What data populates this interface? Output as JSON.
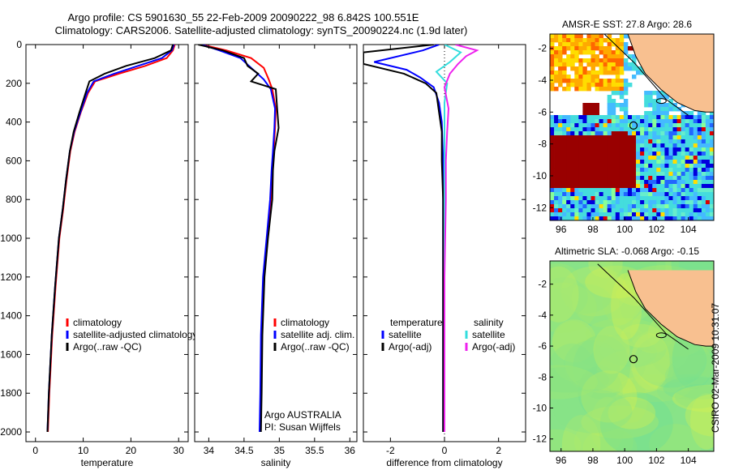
{
  "header": {
    "line1": "Argo profile: CS 5901630_55 22-Feb-2009 20090222_98 6.842S 100.551E",
    "line2": "Climatology: CARS2006. Satellite-adjusted climatology: synTS_20090224.nc (1.9d later)"
  },
  "credit": "CSIRO 02-Mar-2009 10:31:07",
  "colors": {
    "climatology": "#ff0000",
    "satellite": "#0000ff",
    "argo": "#000000",
    "sal_satellite": "#33dddd",
    "sal_argo": "#ee22ee",
    "land": "#f8c090",
    "float_marker": "#000000"
  },
  "chart_data": [
    {
      "type": "line",
      "id": "temperature",
      "xlabel": "temperature",
      "ylabel": "",
      "xlim": [
        -2,
        32
      ],
      "ylim": [
        2050,
        0
      ],
      "xticks": [
        0,
        10,
        20,
        30
      ],
      "yticks": [
        0,
        200,
        400,
        600,
        800,
        1000,
        1200,
        1400,
        1600,
        1800,
        2000
      ],
      "series": [
        {
          "name": "climatology",
          "color_key": "climatology",
          "x": [
            29.2,
            28.8,
            27.5,
            23.0,
            17.5,
            12.5,
            11.0,
            9.5,
            8.2,
            7.3,
            6.5,
            5.8,
            5.0,
            4.2,
            3.5,
            2.9,
            2.6
          ],
          "y": [
            0,
            30,
            70,
            110,
            150,
            190,
            250,
            350,
            450,
            550,
            700,
            850,
            1000,
            1250,
            1500,
            1800,
            2000
          ]
        },
        {
          "name": "satellite-adjusted climatology",
          "color_key": "satellite",
          "x": [
            29.0,
            28.6,
            26.5,
            21.5,
            16.5,
            12.2,
            10.8,
            9.4,
            8.1,
            7.2,
            6.4,
            5.7,
            4.9,
            4.1,
            3.4,
            2.8,
            2.5
          ],
          "y": [
            0,
            30,
            70,
            110,
            150,
            190,
            250,
            350,
            450,
            550,
            700,
            850,
            1000,
            1250,
            1500,
            1800,
            2000
          ]
        },
        {
          "name": "Argo(..raw -QC)",
          "color_key": "argo",
          "x": [
            28.8,
            28.4,
            25.0,
            19.0,
            14.5,
            11.3,
            10.5,
            9.2,
            8.0,
            7.2,
            6.4,
            5.7,
            4.9,
            4.1,
            3.4,
            2.8,
            2.5
          ],
          "y": [
            0,
            30,
            70,
            110,
            150,
            190,
            250,
            350,
            450,
            550,
            700,
            850,
            1000,
            1250,
            1500,
            1800,
            2000
          ]
        }
      ],
      "legend": [
        {
          "label": "climatology",
          "color_key": "climatology"
        },
        {
          "label": "satellite-adjusted climatology",
          "color_key": "satellite"
        },
        {
          "label": "Argo(..raw -QC)",
          "color_key": "argo"
        }
      ],
      "legend_position": "lower-right"
    },
    {
      "type": "line",
      "id": "salinity",
      "xlabel": "salinity",
      "ylabel": "",
      "xlim": [
        33.8,
        36.1
      ],
      "ylim": [
        2050,
        0
      ],
      "xticks": [
        34,
        34.5,
        35,
        35.5,
        36
      ],
      "yticks": [
        0,
        200,
        400,
        600,
        800,
        1000,
        1200,
        1400,
        1600,
        1800,
        2000
      ],
      "series": [
        {
          "name": "climatology",
          "color_key": "climatology",
          "x": [
            33.9,
            34.25,
            34.6,
            34.78,
            34.85,
            34.9,
            34.95,
            34.94,
            34.92,
            34.9,
            34.88,
            34.83,
            34.78,
            34.75,
            34.74,
            34.73
          ],
          "y": [
            0,
            30,
            70,
            120,
            180,
            230,
            330,
            430,
            550,
            650,
            800,
            1000,
            1200,
            1500,
            1800,
            2000
          ]
        },
        {
          "name": "satellite adj. clim.",
          "color_key": "satellite",
          "x": [
            33.9,
            34.15,
            34.45,
            34.6,
            34.78,
            34.88,
            34.94,
            34.93,
            34.91,
            34.89,
            34.87,
            34.82,
            34.77,
            34.74,
            34.73,
            34.72
          ],
          "y": [
            0,
            30,
            70,
            120,
            180,
            230,
            330,
            430,
            550,
            650,
            800,
            1000,
            1200,
            1500,
            1800,
            2000
          ]
        },
        {
          "name": "Argo(..raw -QC)",
          "color_key": "argo",
          "x": [
            33.85,
            34.2,
            34.5,
            34.55,
            34.7,
            34.6,
            34.95,
            34.97,
            34.99,
            34.93,
            34.91,
            34.9,
            34.84,
            34.79,
            34.76,
            34.75,
            34.74
          ],
          "y": [
            0,
            30,
            70,
            110,
            150,
            190,
            230,
            330,
            430,
            550,
            650,
            800,
            1000,
            1200,
            1500,
            1800,
            2000
          ]
        }
      ],
      "legend": [
        {
          "label": "climatology",
          "color_key": "climatology"
        },
        {
          "label": "satellite adj. clim.",
          "color_key": "satellite"
        },
        {
          "label": "Argo(..raw -QC)",
          "color_key": "argo"
        }
      ],
      "legend_position": "lower-right",
      "annotation": [
        "Argo AUSTRALIA",
        "PI: Susan Wijffels"
      ]
    },
    {
      "type": "line",
      "id": "difference",
      "xlabel": "difference from climatology",
      "ylabel": "",
      "xlim": [
        -3,
        3
      ],
      "ylim": [
        2050,
        0
      ],
      "xticks": [
        -2,
        0,
        2
      ],
      "yticks": [
        0,
        200,
        400,
        600,
        800,
        1000,
        1200,
        1400,
        1600,
        1800,
        2000
      ],
      "series": [
        {
          "name": "temperature satellite",
          "color_key": "satellite",
          "x": [
            -0.2,
            -0.8,
            -2.6,
            -1.4,
            -0.9,
            -0.4,
            -0.2,
            -0.1,
            -0.05,
            -0.05,
            -0.05,
            -0.05,
            -0.05,
            -0.05
          ],
          "y": [
            0,
            30,
            90,
            130,
            170,
            220,
            300,
            400,
            600,
            800,
            1000,
            1400,
            1800,
            2000
          ]
        },
        {
          "name": "temperature Argo(-adj)",
          "color_key": "argo",
          "x": [
            -0.4,
            -3.0,
            -3.0,
            -1.5,
            -0.7,
            -0.3,
            -0.2,
            -0.1,
            -0.1,
            -0.05,
            -0.05,
            -0.05,
            -0.05
          ],
          "y": [
            0,
            40,
            100,
            150,
            200,
            250,
            350,
            450,
            600,
            800,
            1000,
            1400,
            2000
          ]
        },
        {
          "name": "salinity satellite",
          "color_key": "sal_satellite",
          "x": [
            0.0,
            0.6,
            0.2,
            -0.3,
            0.1,
            0.0,
            0.0,
            0.0,
            0.0,
            0.0,
            0.0
          ],
          "y": [
            0,
            40,
            90,
            140,
            200,
            300,
            500,
            800,
            1200,
            1600,
            2000
          ]
        },
        {
          "name": "salinity Argo(-adj)",
          "color_key": "sal_argo",
          "x": [
            0.4,
            1.2,
            0.8,
            0.5,
            0.2,
            0.0,
            0.15,
            0.1,
            0.05,
            0.05,
            0.0,
            0.0
          ],
          "y": [
            0,
            30,
            60,
            100,
            150,
            220,
            330,
            450,
            600,
            800,
            1200,
            2000
          ]
        }
      ],
      "legend_groups": [
        {
          "heading": "temperature",
          "items": [
            {
              "label": "satellite",
              "color_key": "satellite"
            },
            {
              "label": "Argo(-adj)",
              "color_key": "argo"
            }
          ]
        },
        {
          "heading": "salinity",
          "items": [
            {
              "label": "satellite",
              "color_key": "sal_satellite"
            },
            {
              "label": "Argo(-adj)",
              "color_key": "sal_argo"
            }
          ]
        }
      ],
      "legend_position": "lower-center"
    },
    {
      "type": "heatmap",
      "id": "sst_map",
      "title": "AMSR-E SST: 27.8 Argo: 28.6",
      "xlim": [
        95.3,
        105.6
      ],
      "ylim": [
        -12.8,
        -1.1
      ],
      "xticks": [
        96,
        98,
        100,
        102,
        104
      ],
      "yticks": [
        -2,
        -4,
        -6,
        -8,
        -10,
        -12
      ],
      "float_position": {
        "lon": 100.551,
        "lat": -6.842
      },
      "land": "east (Sumatra coast)",
      "palette": [
        "#0000dd",
        "#2266ff",
        "#44bbff",
        "#44dddd",
        "#66eecc",
        "#88ff99",
        "#ccff44",
        "#ffdd00",
        "#ffaa00",
        "#ff6600",
        "#dd0000",
        "#990000"
      ]
    },
    {
      "type": "heatmap",
      "id": "sla_map",
      "title": "Altimetric SLA: -0.068 Argo: -0.15",
      "xlim": [
        95.3,
        105.6
      ],
      "ylim": [
        -12.8,
        -0.5
      ],
      "xticks": [
        96,
        98,
        100,
        102,
        104
      ],
      "yticks": [
        -2,
        -4,
        -6,
        -8,
        -10,
        -12
      ],
      "float_position": {
        "lon": 100.551,
        "lat": -6.842
      },
      "land": "east (Sumatra coast)",
      "palette": [
        "#66dd99",
        "#88e388",
        "#a4e870",
        "#c2ee60",
        "#d8f050"
      ]
    }
  ]
}
